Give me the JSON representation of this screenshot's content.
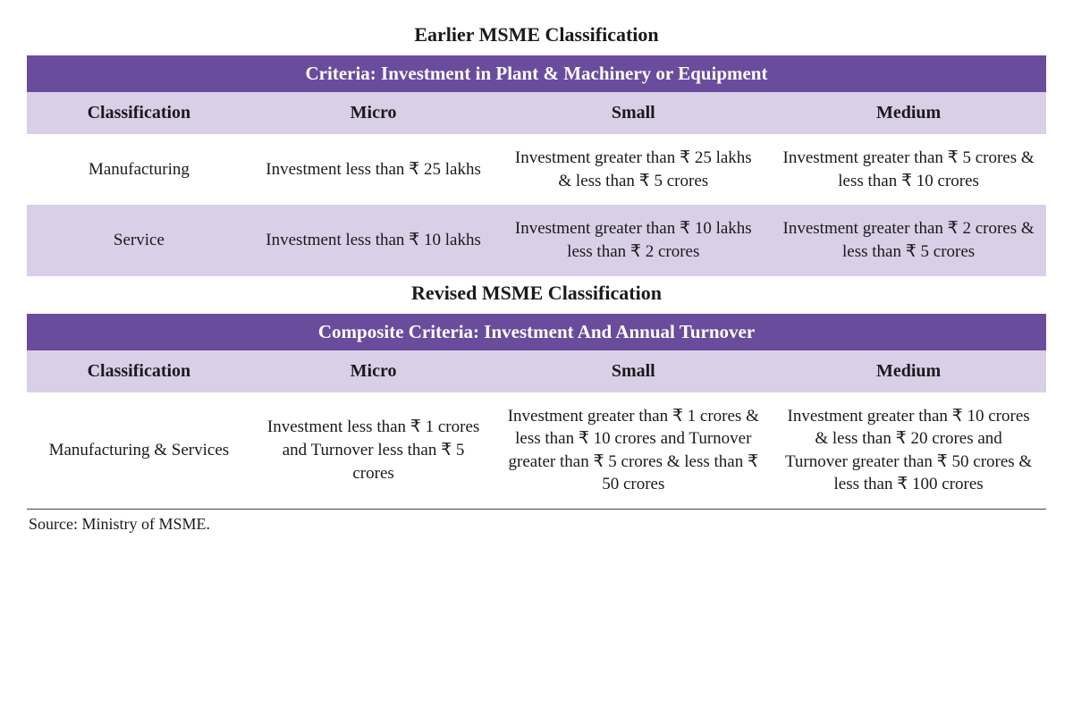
{
  "colors": {
    "criteria_bg": "#6a4c9c",
    "criteria_text": "#ffffff",
    "header_bg": "#d9cfe7",
    "shade_bg": "#d9cfe7",
    "body_text": "#1a1a1a",
    "page_bg": "#ffffff"
  },
  "earlier": {
    "title": "Earlier MSME Classification",
    "criteria": "Criteria: Investment in Plant & Machinery or Equipment",
    "headers": {
      "classification": "Classification",
      "micro": "Micro",
      "small": "Small",
      "medium": "Medium"
    },
    "rows": [
      {
        "label": "Manufacturing",
        "micro": "Investment less than ₹ 25 lakhs",
        "small": "Investment greater than ₹ 25 lakhs & less than ₹ 5 crores",
        "medium": "Investment greater than ₹ 5 crores & less than ₹ 10 crores"
      },
      {
        "label": "Service",
        "micro": "Investment less than ₹ 10 lakhs",
        "small": "Investment greater than ₹ 10 lakhs less than ₹ 2 crores",
        "medium": "Investment greater than ₹ 2 crores & less than ₹ 5 crores"
      }
    ]
  },
  "revised": {
    "title": "Revised MSME Classification",
    "criteria": "Composite Criteria:  Investment And Annual Turnover",
    "headers": {
      "classification": "Classification",
      "micro": "Micro",
      "small": "Small",
      "medium": "Medium"
    },
    "rows": [
      {
        "label": "Manufacturing & Services",
        "micro": "Investment less than ₹ 1 crores and Turnover less than ₹ 5 crores",
        "small": "Investment greater than ₹ 1 crores & less than ₹ 10 crores and Turnover greater than ₹ 5 crores & less than ₹ 50 crores",
        "medium": "Investment greater than ₹ 10 crores & less than ₹ 20 crores and Turnover greater than ₹ 50 crores & less than ₹ 100 crores"
      }
    ]
  },
  "source": "Source: Ministry of MSME."
}
